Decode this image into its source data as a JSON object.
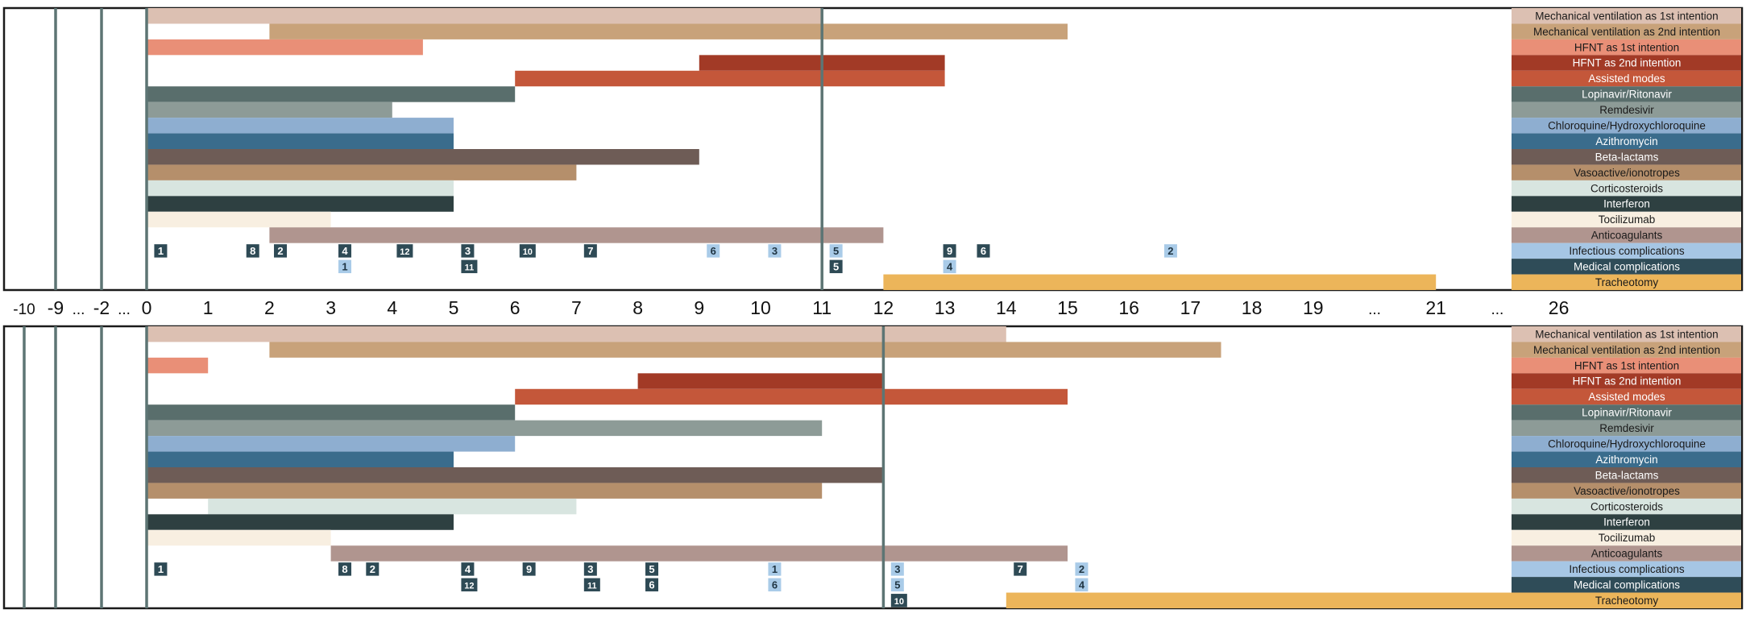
{
  "axis": {
    "ticks": [
      {
        "label": "-10",
        "day": -10
      },
      {
        "label": "-9",
        "day": -9
      },
      {
        "label": "...",
        "day": -5.5
      },
      {
        "label": "-2",
        "day": -2
      },
      {
        "label": "...",
        "day": -1
      },
      {
        "label": "0",
        "day": 0
      },
      {
        "label": "1",
        "day": 1
      },
      {
        "label": "2",
        "day": 2
      },
      {
        "label": "3",
        "day": 3
      },
      {
        "label": "4",
        "day": 4
      },
      {
        "label": "5",
        "day": 5
      },
      {
        "label": "6",
        "day": 6
      },
      {
        "label": "7",
        "day": 7
      },
      {
        "label": "8",
        "day": 8
      },
      {
        "label": "9",
        "day": 9
      },
      {
        "label": "10",
        "day": 10
      },
      {
        "label": "11",
        "day": 11
      },
      {
        "label": "12",
        "day": 12
      },
      {
        "label": "13",
        "day": 13
      },
      {
        "label": "14",
        "day": 14
      },
      {
        "label": "15",
        "day": 15
      },
      {
        "label": "16",
        "day": 16
      },
      {
        "label": "17",
        "day": 17
      },
      {
        "label": "18",
        "day": 18
      },
      {
        "label": "19",
        "day": 19
      },
      {
        "label": "...",
        "day": 20
      },
      {
        "label": "21",
        "day": 21
      },
      {
        "label": "...",
        "day": 22
      },
      {
        "label": "26",
        "day": 23
      }
    ]
  },
  "chart_data": [
    {
      "type": "bar",
      "orientation": "horizontal-timeline",
      "x_unit": "day",
      "reference_days": [
        -9,
        -2,
        0,
        11
      ],
      "categories": [
        "Mechanical ventilation as 1st intention",
        "Mechanical ventilation as 2nd intention",
        "HFNT as 1st intention",
        "HFNT as 2nd intention",
        "Assisted modes",
        "Lopinavir/Ritonavir",
        "Remdesivir",
        "Chloroquine/Hydroxychloroquine",
        "Azithromycin",
        "Beta-lactams",
        "Vasoactive/ionotropes",
        "Corticosteroids",
        "Interferon",
        "Tocilizumab",
        "Anticoagulants",
        "Infectious complications",
        "Medical complications",
        "Tracheotomy"
      ],
      "colors": [
        "#dcc0b2",
        "#c8a27a",
        "#e98f77",
        "#a23a26",
        "#c4573a",
        "#596e6c",
        "#8d9b97",
        "#8eaed0",
        "#3a6c8c",
        "#6e5c56",
        "#b58f6b",
        "#d8e5e0",
        "#2e4041",
        "#f8efe1",
        "#b0958f",
        "#a6c6e4",
        "#2f4c58",
        "#ecb55a"
      ],
      "bars": [
        {
          "row": 0,
          "start": 0,
          "end": 11
        },
        {
          "row": 1,
          "start": 2,
          "end": 15
        },
        {
          "row": 2,
          "start": 0,
          "end": 4.5
        },
        {
          "row": 3,
          "start": 9,
          "end": 13
        },
        {
          "row": 4,
          "start": 6,
          "end": 13
        },
        {
          "row": 5,
          "start": 0,
          "end": 6
        },
        {
          "row": 6,
          "start": 0,
          "end": 4
        },
        {
          "row": 7,
          "start": 0,
          "end": 5
        },
        {
          "row": 8,
          "start": 0,
          "end": 5
        },
        {
          "row": 9,
          "start": 0,
          "end": 9
        },
        {
          "row": 10,
          "start": 0,
          "end": 7
        },
        {
          "row": 11,
          "start": 0,
          "end": 5
        },
        {
          "row": 12,
          "start": 0,
          "end": 5
        },
        {
          "row": 13,
          "start": 0,
          "end": 3
        },
        {
          "row": 14,
          "start": 2,
          "end": 12
        },
        {
          "row": 17,
          "start": 12,
          "end": 21
        }
      ],
      "events": [
        {
          "row": 15,
          "day": 0.15,
          "label": "1",
          "style": "dark"
        },
        {
          "row": 15,
          "day": 1.65,
          "label": "8",
          "style": "dark"
        },
        {
          "row": 15,
          "day": 2.1,
          "label": "2",
          "style": "dark"
        },
        {
          "row": 15,
          "day": 3.15,
          "label": "4",
          "style": "dark"
        },
        {
          "row": 15,
          "day": 4.1,
          "label": "12",
          "style": "dark"
        },
        {
          "row": 15,
          "day": 5.15,
          "label": "3",
          "style": "dark"
        },
        {
          "row": 15,
          "day": 6.1,
          "label": "10",
          "style": "dark"
        },
        {
          "row": 15,
          "day": 7.15,
          "label": "7",
          "style": "dark"
        },
        {
          "row": 15,
          "day": 9.15,
          "label": "6",
          "style": "light"
        },
        {
          "row": 15,
          "day": 10.15,
          "label": "3",
          "style": "light"
        },
        {
          "row": 15,
          "day": 11.15,
          "label": "5",
          "style": "light"
        },
        {
          "row": 15,
          "day": 13.0,
          "label": "9",
          "style": "dark"
        },
        {
          "row": 15,
          "day": 13.55,
          "label": "6",
          "style": "dark"
        },
        {
          "row": 15,
          "day": 16.6,
          "label": "2",
          "style": "light"
        },
        {
          "row": 16,
          "day": 3.15,
          "label": "1",
          "style": "light"
        },
        {
          "row": 16,
          "day": 5.15,
          "label": "11",
          "style": "dark"
        },
        {
          "row": 16,
          "day": 11.15,
          "label": "5",
          "style": "dark"
        },
        {
          "row": 16,
          "day": 13.0,
          "label": "4",
          "style": "light"
        }
      ]
    },
    {
      "type": "bar",
      "orientation": "horizontal-timeline",
      "x_unit": "day",
      "reference_days": [
        -10,
        -9,
        -2,
        0,
        12
      ],
      "categories": [
        "Mechanical ventilation as 1st intention",
        "Mechanical ventilation as 2nd intention",
        "HFNT as 1st intention",
        "HFNT as 2nd intention",
        "Assisted modes",
        "Lopinavir/Ritonavir",
        "Remdesivir",
        "Chloroquine/Hydroxychloroquine",
        "Azithromycin",
        "Beta-lactams",
        "Vasoactive/ionotropes",
        "Corticosteroids",
        "Interferon",
        "Tocilizumab",
        "Anticoagulants",
        "Infectious complications",
        "Medical complications",
        "Tracheotomy"
      ],
      "colors": [
        "#dcc0b2",
        "#c8a27a",
        "#e98f77",
        "#a23a26",
        "#c4573a",
        "#596e6c",
        "#8d9b97",
        "#8eaed0",
        "#3a6c8c",
        "#6e5c56",
        "#b58f6b",
        "#d8e5e0",
        "#2e4041",
        "#f8efe1",
        "#b0958f",
        "#a6c6e4",
        "#2f4c58",
        "#ecb55a"
      ],
      "bars": [
        {
          "row": 0,
          "start": 0,
          "end": 14
        },
        {
          "row": 1,
          "start": 2,
          "end": 17.5
        },
        {
          "row": 2,
          "start": 0,
          "end": 1
        },
        {
          "row": 3,
          "start": 8,
          "end": 12
        },
        {
          "row": 4,
          "start": 6,
          "end": 15
        },
        {
          "row": 5,
          "start": 0,
          "end": 6
        },
        {
          "row": 6,
          "start": 0,
          "end": 11
        },
        {
          "row": 7,
          "start": 0,
          "end": 6
        },
        {
          "row": 8,
          "start": 0,
          "end": 5
        },
        {
          "row": 9,
          "start": 0,
          "end": 12
        },
        {
          "row": 10,
          "start": 0,
          "end": 11
        },
        {
          "row": 11,
          "start": 1,
          "end": 7
        },
        {
          "row": 12,
          "start": 0,
          "end": 5
        },
        {
          "row": 13,
          "start": 0,
          "end": 3
        },
        {
          "row": 14,
          "start": 3,
          "end": 15
        },
        {
          "row": 17,
          "start": 14,
          "end": 22.7
        }
      ],
      "events": [
        {
          "row": 15,
          "day": 0.15,
          "label": "1",
          "style": "dark"
        },
        {
          "row": 15,
          "day": 3.15,
          "label": "8",
          "style": "dark"
        },
        {
          "row": 15,
          "day": 3.6,
          "label": "2",
          "style": "dark"
        },
        {
          "row": 15,
          "day": 5.15,
          "label": "4",
          "style": "dark"
        },
        {
          "row": 15,
          "day": 6.15,
          "label": "9",
          "style": "dark"
        },
        {
          "row": 15,
          "day": 7.15,
          "label": "3",
          "style": "dark"
        },
        {
          "row": 15,
          "day": 8.15,
          "label": "5",
          "style": "dark"
        },
        {
          "row": 15,
          "day": 10.15,
          "label": "1",
          "style": "light"
        },
        {
          "row": 15,
          "day": 12.15,
          "label": "3",
          "style": "light"
        },
        {
          "row": 15,
          "day": 14.15,
          "label": "7",
          "style": "dark"
        },
        {
          "row": 15,
          "day": 15.15,
          "label": "2",
          "style": "light"
        },
        {
          "row": 16,
          "day": 5.15,
          "label": "12",
          "style": "dark"
        },
        {
          "row": 16,
          "day": 7.15,
          "label": "11",
          "style": "dark"
        },
        {
          "row": 16,
          "day": 8.15,
          "label": "6",
          "style": "dark"
        },
        {
          "row": 16,
          "day": 10.15,
          "label": "6",
          "style": "light"
        },
        {
          "row": 16,
          "day": 12.15,
          "label": "5",
          "style": "light"
        },
        {
          "row": 16,
          "day": 15.15,
          "label": "4",
          "style": "light"
        },
        {
          "row": 17,
          "day": 12.15,
          "label": "10",
          "style": "dark"
        }
      ]
    }
  ]
}
